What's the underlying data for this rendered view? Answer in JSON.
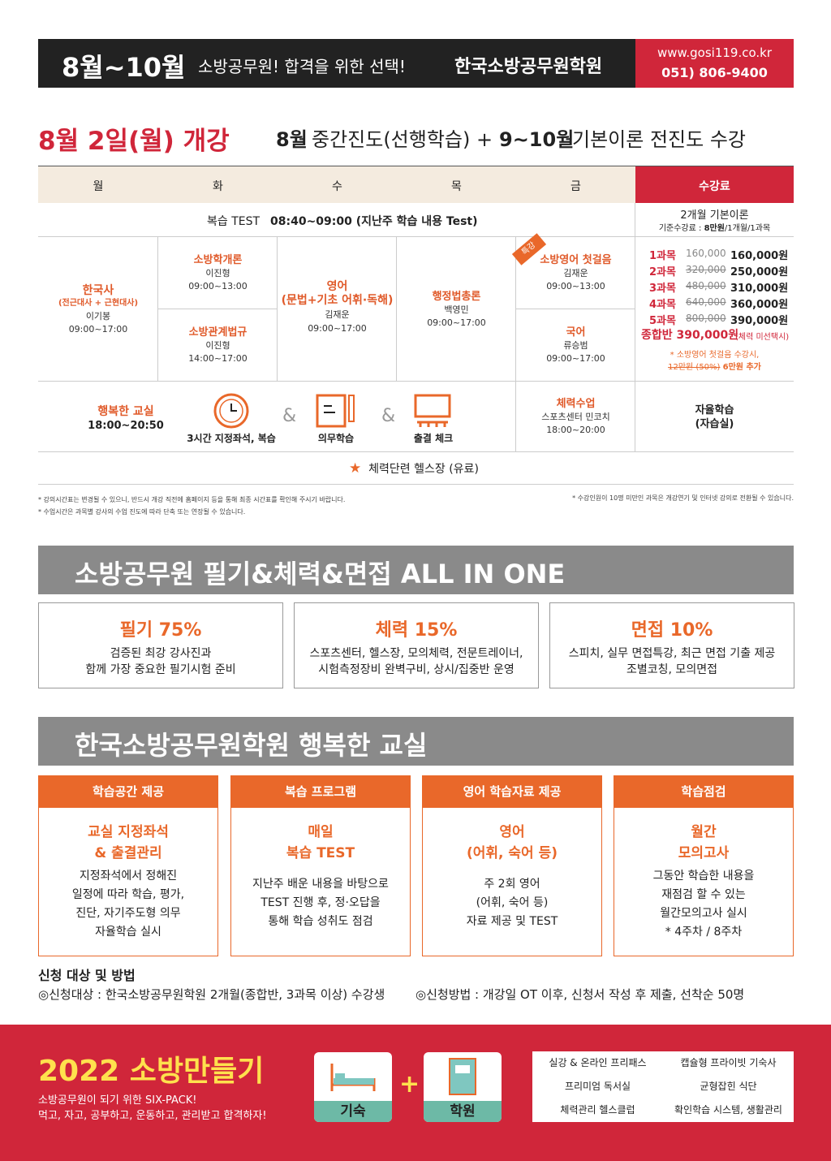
{
  "header": {
    "months": "8월~10월",
    "tagline": "소방공무원! 합격을 위한 선택!",
    "academy": "한국소방공무원학원",
    "url": "www.gosi119.co.kr",
    "phone": "051) 806-9400"
  },
  "opening": {
    "date": "8월 2일(월) 개강",
    "month1": "8월",
    "desc1": "중간진도(선행학습) +",
    "month2": "9~10월",
    "desc2": "기본이론 전진도 수강"
  },
  "schedule": {
    "days": [
      "월",
      "화",
      "수",
      "목",
      "금",
      "수강료"
    ],
    "review": {
      "label": "복습 TEST",
      "time": "08:40~09:00 (지난주 학습 내용 Test)"
    },
    "fee_head": {
      "title": "2개월 기본이론",
      "base_prefix": "기준수강료 :",
      "base_bold": "8만원",
      "base_suffix": "/1개월/1과목"
    },
    "mon": {
      "subject": "한국사",
      "note": "(전근대사 + 근현대사)",
      "teacher": "이기봉",
      "time": "09:00~17:00"
    },
    "tue": [
      {
        "subject": "소방학개론",
        "teacher": "이진형",
        "time": "09:00~13:00"
      },
      {
        "subject": "소방관계법규",
        "teacher": "이진형",
        "time": "14:00~17:00"
      }
    ],
    "wed": {
      "subject": "영어",
      "note": "(문법+기초 어휘·독해)",
      "teacher": "김재운",
      "time": "09:00~17:00"
    },
    "thu": {
      "subject": "행정법총론",
      "teacher": "백영민",
      "time": "09:00~17:00"
    },
    "fri": {
      "badge": "특강",
      "items": [
        {
          "subject": "소방영어 첫걸음",
          "teacher": "김재운",
          "time": "09:00~13:00"
        },
        {
          "subject": "국어",
          "teacher": "류승범",
          "time": "09:00~17:00"
        }
      ]
    },
    "fees": [
      {
        "label": "1과목",
        "original": "160,000",
        "price": "160,000원"
      },
      {
        "label": "2과목",
        "original": "320,000",
        "price": "250,000원"
      },
      {
        "label": "3과목",
        "original": "480,000",
        "price": "310,000원"
      },
      {
        "label": "4과목",
        "original": "640,000",
        "price": "360,000원"
      },
      {
        "label": "5과목",
        "original": "800,000",
        "price": "390,000원"
      }
    ],
    "total": {
      "label": "종합반 390,000원",
      "note": "(체력 미선택시)"
    },
    "fee_note": {
      "line1": "* 소방영어 첫걸음 수강시,",
      "struck": "12만원 (50%)",
      "added": "6만원 추가"
    },
    "happy": {
      "title": "행복한 교실",
      "time": "18:00~20:50",
      "separator": "&",
      "items": [
        "3시간 지정좌석, 복습",
        "의무학습",
        "출결 체크"
      ]
    },
    "fitness": {
      "title": "체력수업",
      "place": "스포츠센터 민코치",
      "time": "18:00~20:00"
    },
    "self_study": {
      "title": "자율학습",
      "note": "(자습실)"
    },
    "gym": "체력단련 헬스장 (유료)"
  },
  "notes": {
    "left": [
      "* 강의시간표는 변경될 수 있으니, 반드시 개강 직전에 홈페이지 등을 통해 최종 시간표를 확인해 주시기 바랍니다.",
      "* 수업시간은 과목별 강사의 수업 진도에 따라 단축 또는 연장될 수 있습니다."
    ],
    "right": "* 수강인원이 10명 미만인 과목은 개강연기 및 인터넷 강의로 전환될 수 있습니다."
  },
  "all_in_one": {
    "title": "소방공무원 필기&체력&면접 ALL IN ONE",
    "cards": [
      {
        "title": "필기 75%",
        "lines": [
          "검증된 최강 강사진과",
          "함께 가장 중요한 필기시험 준비"
        ]
      },
      {
        "title": "체력 15%",
        "lines": [
          "스포츠센터, 헬스장, 모의체력, 전문트레이너,",
          "시험측정장비 완벽구비, 상시/집중반 운영"
        ]
      },
      {
        "title": "면접 10%",
        "lines": [
          "스피치, 실무 면접특강, 최근 면접 기출 제공",
          "조별코칭, 모의면접"
        ]
      }
    ]
  },
  "happy_class": {
    "title": "한국소방공무원학원 행복한 교실",
    "cards": [
      {
        "header": "학습공간 제공",
        "title": [
          "교실 지정좌석",
          "& 출결관리"
        ],
        "lines": [
          "지정좌석에서 정해진",
          "일정에 따라 학습, 평가,",
          "진단, 자기주도형 의무",
          "자율학습 실시"
        ]
      },
      {
        "header": "복습 프로그램",
        "title": [
          "매일",
          "복습 TEST"
        ],
        "lines": [
          "지난주 배운 내용을 바탕으로",
          "TEST 진행 후, 정·오답을",
          "통해 학습 성취도 점검"
        ]
      },
      {
        "header": "영어 학습자료 제공",
        "title": [
          "영어",
          "(어휘, 숙어 등)"
        ],
        "lines": [
          "주 2회 영어",
          "(어휘, 숙어 등)",
          "자료 제공 및 TEST"
        ]
      },
      {
        "header": "학습점검",
        "title": [
          "월간",
          "모의고사"
        ],
        "lines": [
          "그동안 학습한 내용을",
          "재점검 할 수 있는",
          "월간모의고사 실시",
          "* 4주차 / 8주차"
        ]
      }
    ]
  },
  "apply": {
    "heading": "신청 대상 및 방법",
    "target": "◎신청대상 : 한국소방공무원학원 2개월(종합반, 3과목 이상) 수강생",
    "method": "◎신청방법 : 개강일 OT 이후, 신청서 작성 후 제출, 선착순 50명"
  },
  "footer": {
    "title": "2022 소방만들기",
    "lines": [
      "소방공무원이 되기 위한 SIX-PACK!",
      "먹고, 자고, 공부하고, 운동하고, 관리받고 합격하자!"
    ],
    "icons": [
      "기숙",
      "학원"
    ],
    "plus": "+",
    "grid": [
      "실강 & 온라인 프리패스",
      "캡슐형 프라이빗 기숙사",
      "프리미엄 독서실",
      "균형잡힌 식단",
      "체력관리 헬스클럽",
      "확인학습 시스템, 생활관리"
    ]
  }
}
